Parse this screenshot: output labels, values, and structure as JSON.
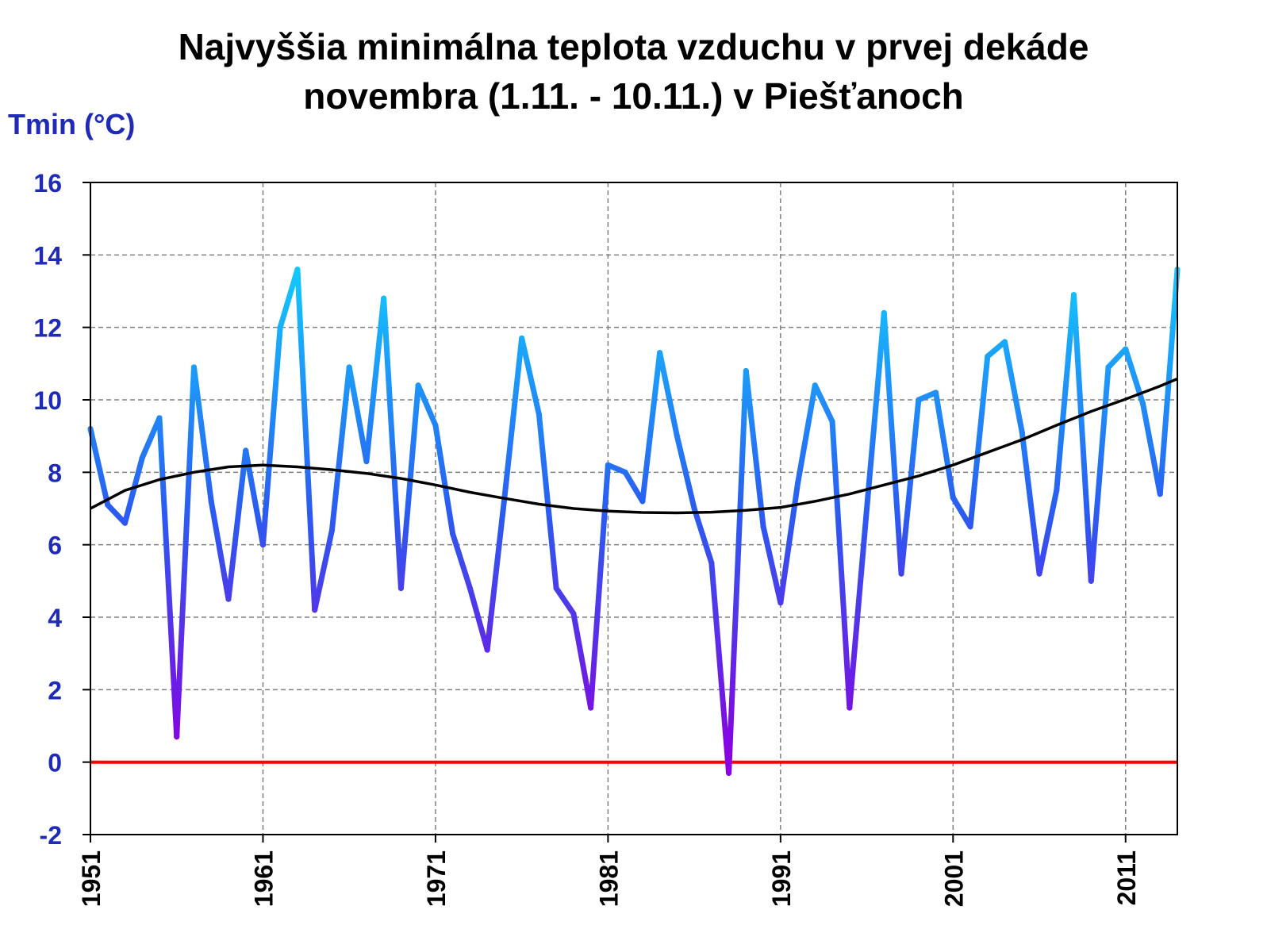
{
  "chart_data": {
    "type": "line",
    "title": [
      "Najvyššia minimálna teplota vzduchu v prvej dekáde",
      "novembra (1.11. - 10.11.) v Piešťanoch"
    ],
    "ylabel": "Tmin (°C)",
    "xlabel": "",
    "xlim": [
      1951,
      2014
    ],
    "ylim": [
      -2,
      16
    ],
    "yticks": [
      16,
      14,
      12,
      10,
      8,
      6,
      4,
      2,
      0,
      -2
    ],
    "xticks": [
      1951,
      1961,
      1971,
      1981,
      1991,
      2001,
      2011
    ],
    "grid": true,
    "series": [
      {
        "name": "Tmin",
        "x": [
          1951,
          1952,
          1953,
          1954,
          1955,
          1956,
          1957,
          1958,
          1959,
          1960,
          1961,
          1962,
          1963,
          1964,
          1965,
          1966,
          1967,
          1968,
          1969,
          1970,
          1971,
          1972,
          1973,
          1974,
          1975,
          1976,
          1977,
          1978,
          1979,
          1980,
          1981,
          1982,
          1983,
          1984,
          1985,
          1986,
          1987,
          1988,
          1989,
          1990,
          1991,
          1992,
          1993,
          1994,
          1995,
          1996,
          1997,
          1998,
          1999,
          2000,
          2001,
          2002,
          2003,
          2004,
          2005,
          2006,
          2007,
          2008,
          2009,
          2010,
          2011,
          2012,
          2013,
          2014
        ],
        "values": [
          9.2,
          7.1,
          6.6,
          8.4,
          9.5,
          0.7,
          10.9,
          7.2,
          4.5,
          8.6,
          6.0,
          12.0,
          13.6,
          4.2,
          6.4,
          10.9,
          8.3,
          12.8,
          4.8,
          10.4,
          9.3,
          6.3,
          4.8,
          3.1,
          7.3,
          11.7,
          9.6,
          4.8,
          4.1,
          1.5,
          8.2,
          8.0,
          7.2,
          11.3,
          9.0,
          7.0,
          5.5,
          -0.3,
          10.8,
          6.5,
          4.4,
          7.7,
          10.4,
          9.4,
          1.5,
          7.0,
          12.4,
          5.2,
          10.0,
          10.2,
          7.3,
          6.5,
          11.2,
          11.6,
          9.1,
          5.2,
          7.5,
          12.9,
          5.0,
          10.9,
          11.4,
          9.9,
          7.4,
          13.6
        ],
        "color_low": "#8a00e0",
        "color_high": "#12ccff"
      },
      {
        "name": "trend",
        "x": [
          1951,
          1953,
          1955,
          1957,
          1959,
          1961,
          1963,
          1965,
          1967,
          1969,
          1971,
          1973,
          1975,
          1977,
          1979,
          1981,
          1983,
          1985,
          1987,
          1989,
          1991,
          1993,
          1995,
          1997,
          1999,
          2001,
          2003,
          2005,
          2007,
          2009,
          2011,
          2013,
          2014
        ],
        "values": [
          7.0,
          7.5,
          7.8,
          8.0,
          8.15,
          8.2,
          8.15,
          8.07,
          7.97,
          7.83,
          7.65,
          7.45,
          7.28,
          7.12,
          7.0,
          6.93,
          6.89,
          6.88,
          6.9,
          6.95,
          7.03,
          7.2,
          7.4,
          7.65,
          7.9,
          8.2,
          8.55,
          8.9,
          9.3,
          9.68,
          10.02,
          10.38,
          10.58
        ],
        "color": "#000000"
      },
      {
        "name": "zero line",
        "x": [
          1951,
          2014
        ],
        "values": [
          0,
          0
        ],
        "color": "#ff0000"
      }
    ]
  }
}
